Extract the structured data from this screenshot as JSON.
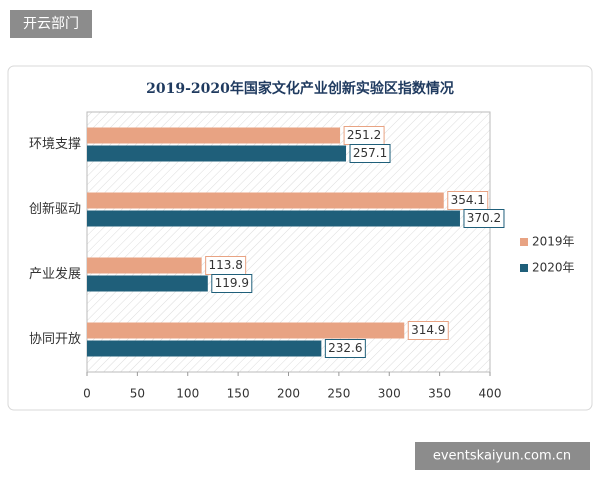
{
  "header": {
    "label": "开云部门"
  },
  "footer": {
    "watermark": "eventskaiyun.com.cn"
  },
  "chart_data": {
    "type": "bar",
    "orientation": "horizontal",
    "title": "2019-2020年国家文化产业创新实验区指数情况",
    "categories": [
      "环境支撑",
      "创新驱动",
      "产业发展",
      "协同开放"
    ],
    "series": [
      {
        "name": "2019年",
        "color": "#e8a383",
        "values": [
          251.2,
          354.1,
          113.8,
          314.9
        ]
      },
      {
        "name": "2020年",
        "color": "#1f5f7a",
        "values": [
          257.1,
          370.2,
          119.9,
          232.6
        ]
      }
    ],
    "xlim": [
      0,
      400
    ],
    "xticks": [
      0,
      50,
      100,
      150,
      200,
      250,
      300,
      350,
      400
    ],
    "grid": false,
    "legend": "right"
  }
}
